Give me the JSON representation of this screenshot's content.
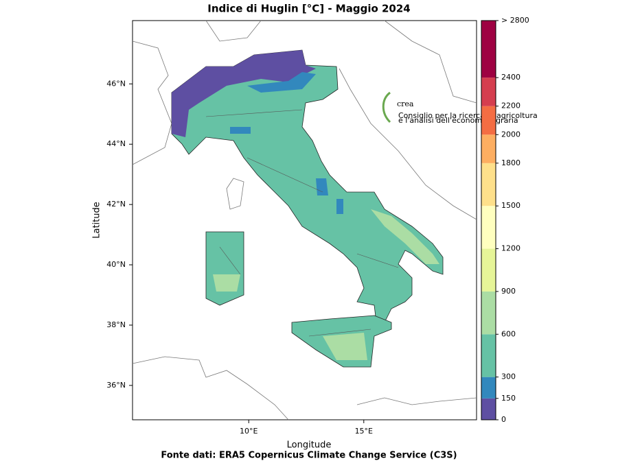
{
  "chart_data": {
    "type": "map",
    "title": "Indice di Huglin [°C] - Maggio 2024",
    "x_label": "Longitude",
    "y_label": "Latitude",
    "source": "Fonte dati: ERA5 Copernicus Climate Change Service (C3S)",
    "xlim": [
      4.95,
      19.9
    ],
    "ylim": [
      34.86,
      48.1
    ],
    "xticks": [
      {
        "value": 10,
        "label": "10°E"
      },
      {
        "value": 15,
        "label": "15°E"
      }
    ],
    "yticks": [
      {
        "value": 36,
        "label": "36°N"
      },
      {
        "value": 38,
        "label": "38°N"
      },
      {
        "value": 40,
        "label": "40°N"
      },
      {
        "value": 42,
        "label": "42°N"
      },
      {
        "value": 44,
        "label": "44°N"
      },
      {
        "value": 46,
        "label": "46°N"
      }
    ],
    "colorbar": {
      "lim": [
        0,
        2800
      ],
      "ticks": [
        0,
        150,
        300,
        600,
        900,
        1200,
        1500,
        1800,
        2000,
        2200,
        2400,
        {
          "value": 2800,
          "label": "> 2800"
        }
      ],
      "colors": [
        "#5e4fa2",
        "#3288bd",
        "#66c2a5",
        "#abdda4",
        "#e6f598",
        "#ffffbf",
        "#fee08b",
        "#fdae61",
        "#f46d43",
        "#d53e4f",
        "#9e0142"
      ]
    },
    "logo": {
      "name": "crea",
      "tagline_1": "Consiglio per la ricerca in agricoltura",
      "tagline_2": "e l'analisi dell'economia agraria"
    }
  }
}
